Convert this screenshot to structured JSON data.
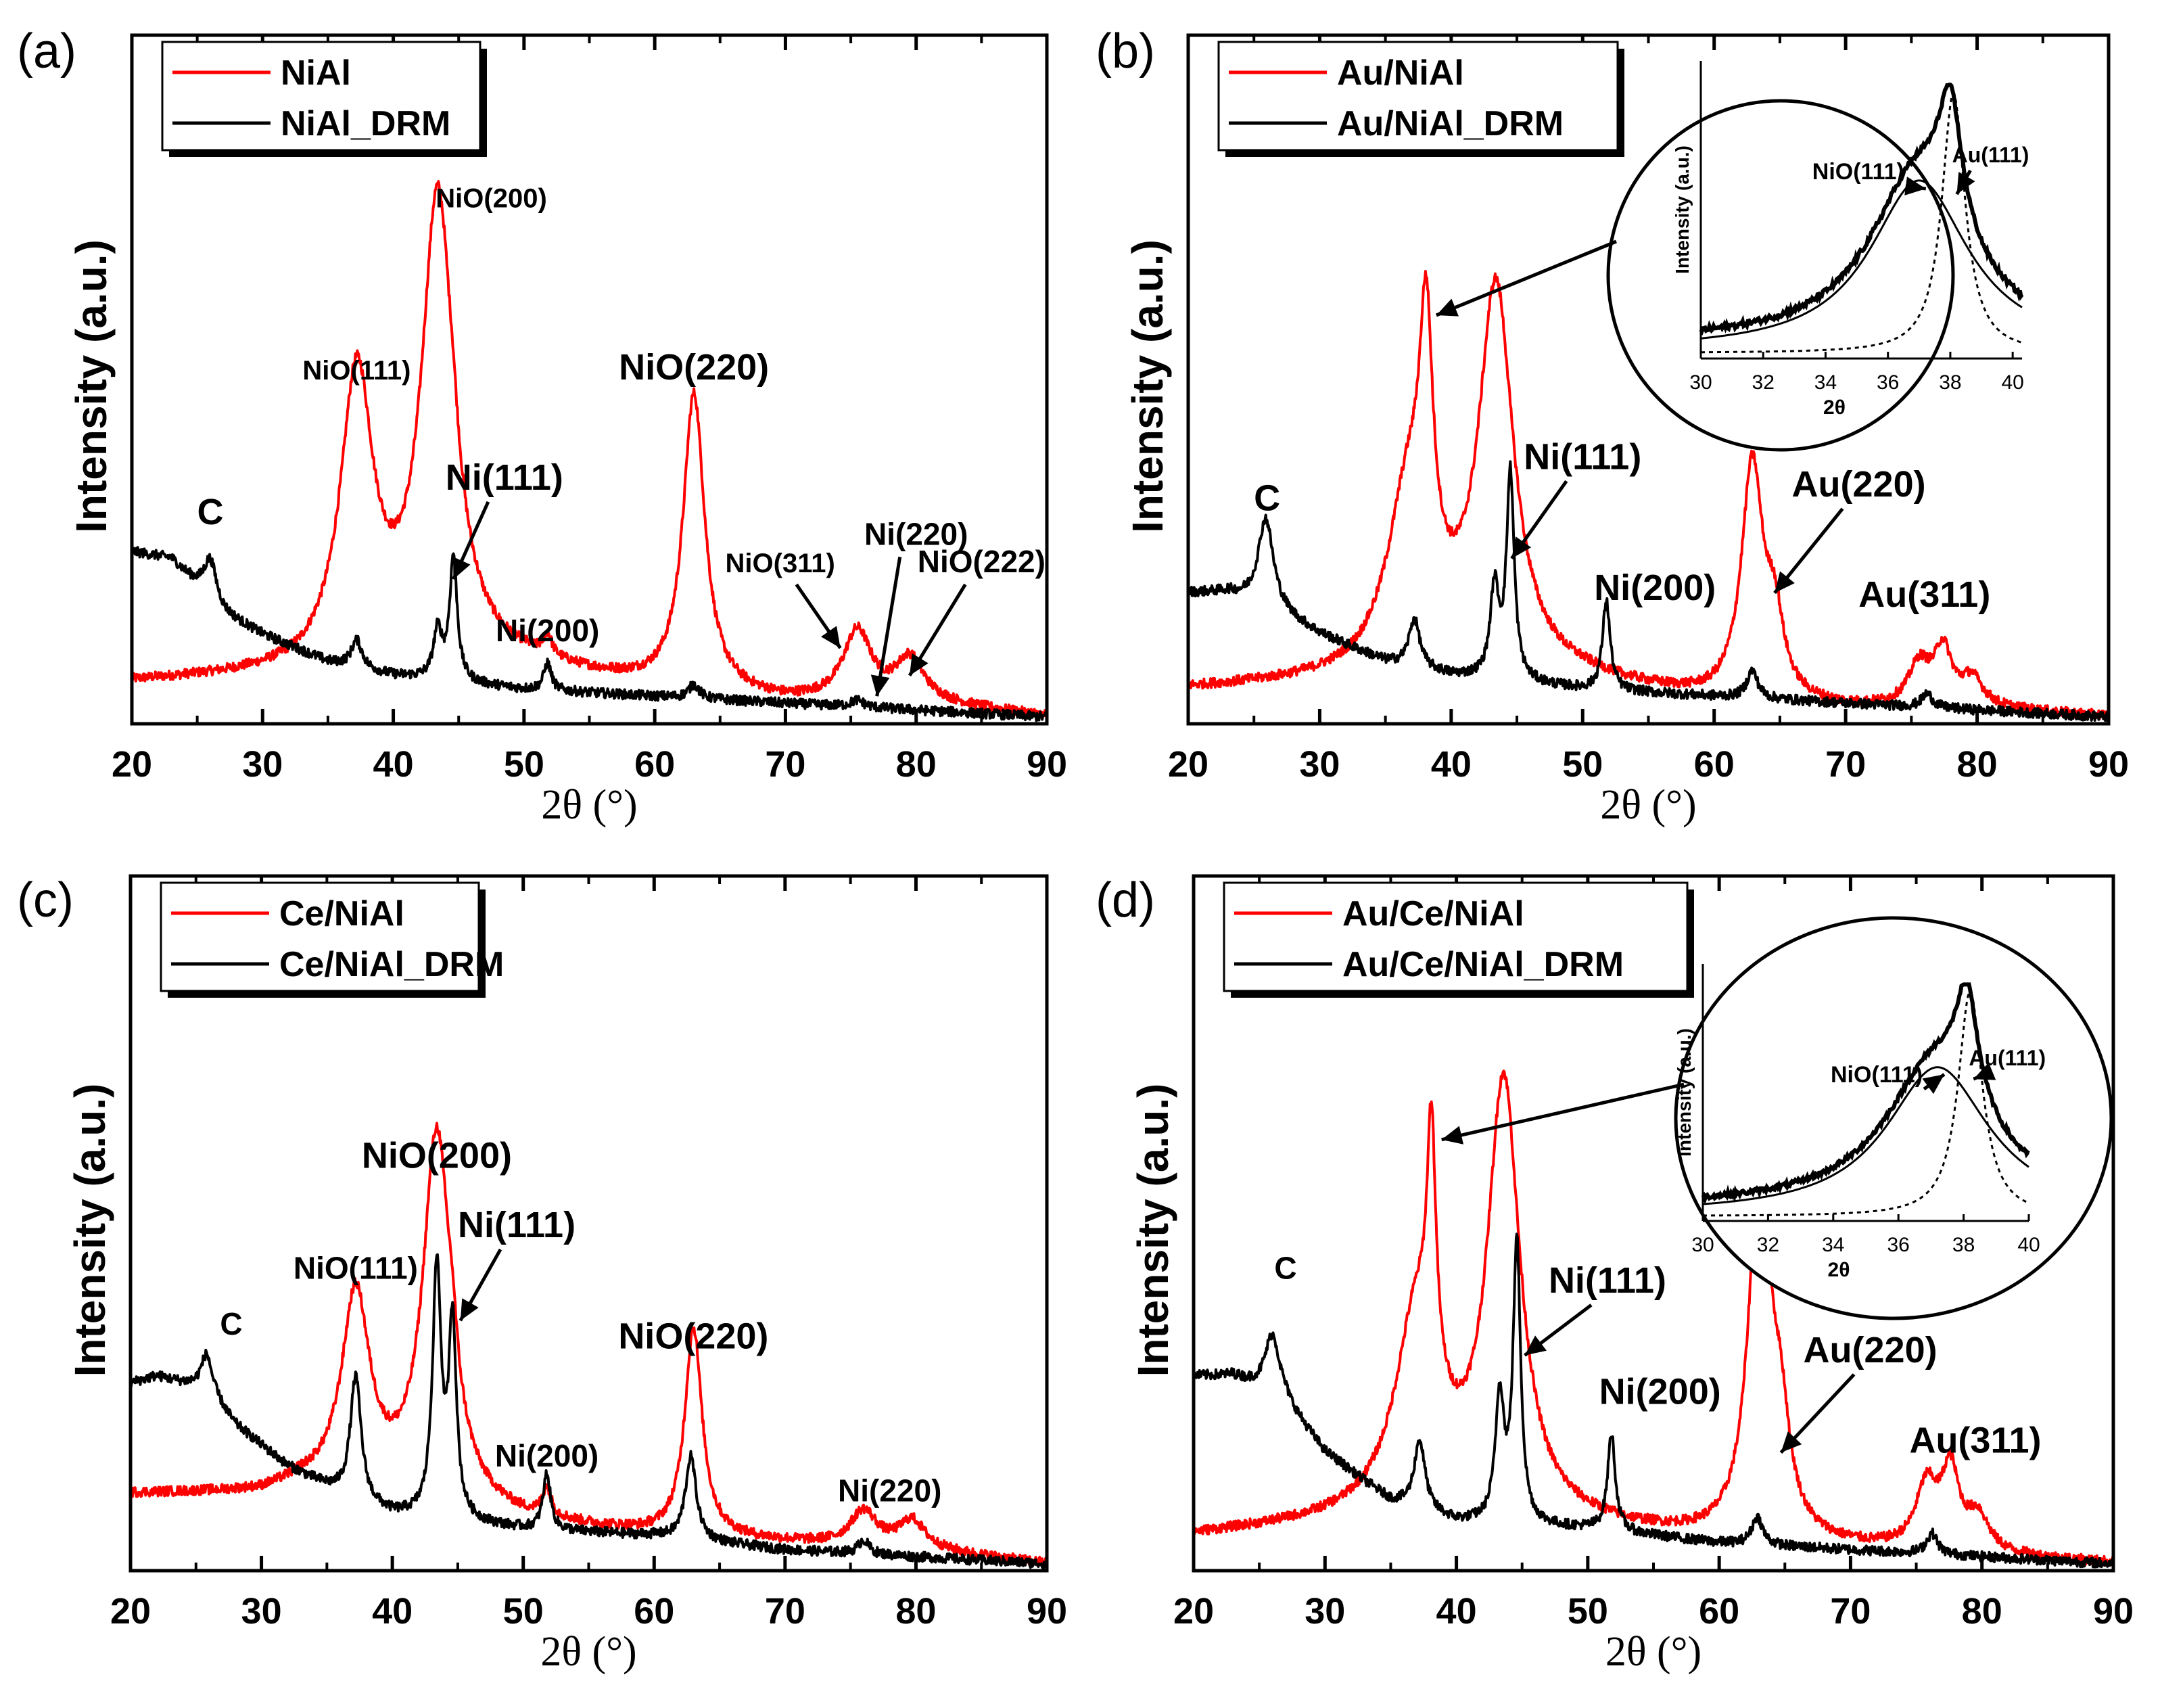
{
  "figure_description": "X-ray diffraction patterns, 2x2 panels",
  "chart_data": [
    {
      "type": "line",
      "panel_letter": "(a)",
      "xlabel": "2θ (°)",
      "ylabel": "Intensity (a.u.)",
      "xlim": [
        20,
        90
      ],
      "ylim": [
        0,
        100
      ],
      "xticks": [
        20,
        30,
        40,
        50,
        60,
        70,
        80,
        90
      ],
      "legend_position": "top-left",
      "series": [
        {
          "name": "NiAl",
          "color": "#ff0000",
          "baseline": [
            [
              20,
              6
            ],
            [
              33,
              7
            ],
            [
              38,
              9
            ],
            [
              50,
              8
            ],
            [
              60,
              5
            ],
            [
              70,
              3
            ],
            [
              80,
              3
            ],
            [
              90,
              1
            ]
          ],
          "peaks": [
            [
              37.2,
              41,
              1.5
            ],
            [
              43.4,
              67,
              1.5
            ],
            [
              44.6,
              3,
              0.4
            ],
            [
              51.8,
              3,
              0.4
            ],
            [
              63.0,
              43,
              1.0
            ],
            [
              75.5,
              10,
              1.3
            ],
            [
              79.5,
              6,
              1.3
            ]
          ]
        },
        {
          "name": "NiAl_DRM",
          "color": "#000000",
          "baseline": [
            [
              20,
              25
            ],
            [
              23,
              24
            ],
            [
              27,
              16
            ],
            [
              30,
              13
            ],
            [
              35,
              9
            ],
            [
              40,
              7
            ],
            [
              50,
              5
            ],
            [
              60,
              4
            ],
            [
              70,
              3
            ],
            [
              80,
              2
            ],
            [
              90,
              1
            ]
          ],
          "peaks": [
            [
              26.0,
              6,
              0.6
            ],
            [
              37.2,
              4,
              0.5
            ],
            [
              43.4,
              7,
              0.4
            ],
            [
              44.6,
              18,
              0.35
            ],
            [
              51.8,
              4,
              0.35
            ],
            [
              63.0,
              2,
              0.5
            ],
            [
              75.5,
              1,
              0.6
            ]
          ]
        }
      ],
      "annotations": [
        {
          "text": "C",
          "x": 26.0,
          "y": 29,
          "size": "lg"
        },
        {
          "text": "NiO(111)",
          "x": 37.2,
          "y": 50,
          "size": "sm"
        },
        {
          "text": "NiO(200)",
          "x": 47.5,
          "y": 75,
          "size": "sm"
        },
        {
          "text": "Ni(111)",
          "x": 48.5,
          "y": 34,
          "size": "lg",
          "arrow_to": [
            44.6,
            21
          ]
        },
        {
          "text": "NiO(220)",
          "x": 63.0,
          "y": 50,
          "size": "lg"
        },
        {
          "text": "Ni(200)",
          "x": 51.8,
          "y": 12,
          "size": "md"
        },
        {
          "text": "NiO(311)",
          "x": 69.6,
          "y": 22,
          "size": "sm",
          "arrow_to": [
            74.2,
            11
          ]
        },
        {
          "text": "Ni(220)",
          "x": 80.0,
          "y": 26,
          "size": "md",
          "arrow_to": [
            77.0,
            4
          ]
        },
        {
          "text": "NiO(222)",
          "x": 85.0,
          "y": 22,
          "size": "md",
          "arrow_to": [
            79.5,
            7
          ]
        }
      ]
    },
    {
      "type": "line",
      "panel_letter": "(b)",
      "xlabel": "2θ (°)",
      "ylabel": "Intensity (a.u.)",
      "xlim": [
        20,
        90
      ],
      "ylim": [
        0,
        100
      ],
      "xticks": [
        20,
        30,
        40,
        50,
        60,
        70,
        80,
        90
      ],
      "legend_position": "top-left",
      "series": [
        {
          "name": "Au/NiAl",
          "color": "#ff0000",
          "baseline": [
            [
              20,
              5
            ],
            [
              33,
              6
            ],
            [
              38,
              8
            ],
            [
              50,
              6
            ],
            [
              60,
              3
            ],
            [
              70,
              2
            ],
            [
              80,
              2
            ],
            [
              90,
              1
            ]
          ],
          "peaks": [
            [
              36.8,
              25,
              2.0
            ],
            [
              38.1,
              35,
              0.6
            ],
            [
              43.4,
              55,
              1.6
            ],
            [
              62.9,
              34,
              1.0
            ],
            [
              64.6,
              10,
              0.8
            ],
            [
              75.6,
              6,
              1.0
            ],
            [
              77.4,
              8,
              0.8
            ],
            [
              79.6,
              4,
              1.0
            ]
          ]
        },
        {
          "name": "Au/NiAl_DRM",
          "color": "#000000",
          "baseline": [
            [
              20,
              19
            ],
            [
              23,
              19
            ],
            [
              27,
              16
            ],
            [
              30,
              13
            ],
            [
              35,
              9
            ],
            [
              40,
              7
            ],
            [
              50,
              5
            ],
            [
              60,
              4
            ],
            [
              70,
              3
            ],
            [
              80,
              2
            ],
            [
              90,
              1
            ]
          ],
          "peaks": [
            [
              25.9,
              13,
              0.7
            ],
            [
              37.2,
              7,
              0.5
            ],
            [
              43.3,
              13,
              0.4
            ],
            [
              44.5,
              30,
              0.35
            ],
            [
              51.8,
              13,
              0.35
            ],
            [
              62.9,
              4,
              0.5
            ],
            [
              76.2,
              2,
              0.5
            ]
          ]
        }
      ],
      "annotations": [
        {
          "text": "C",
          "x": 26.0,
          "y": 31,
          "size": "lg"
        },
        {
          "text": "Ni(111)",
          "x": 50.0,
          "y": 37,
          "size": "lg",
          "arrow_to": [
            44.6,
            24
          ]
        },
        {
          "text": "Ni(200)",
          "x": 55.5,
          "y": 18,
          "size": "lg"
        },
        {
          "text": "Au(220)",
          "x": 71.0,
          "y": 33,
          "size": "lg",
          "arrow_to": [
            64.6,
            19
          ]
        },
        {
          "text": "Au(311)",
          "x": 76.0,
          "y": 17,
          "size": "lg"
        }
      ],
      "inset": {
        "xlim": [
          30,
          40.3
        ],
        "xticks": [
          30,
          32,
          34,
          36,
          38,
          40
        ],
        "xlabel": "2θ",
        "ylabel": "Intensity (a.u.)",
        "main_peak": [
          38.0,
          1.0
        ],
        "nio_fit": [
          37.0,
          1.2
        ],
        "au_fit": [
          38.1,
          0.45
        ],
        "labels": [
          "NiO(111)",
          "Au(111)"
        ]
      }
    },
    {
      "type": "line",
      "panel_letter": "(c)",
      "xlabel": "2θ (°)",
      "ylabel": "Intensity (a.u.)",
      "xlim": [
        20,
        90
      ],
      "ylim": [
        0,
        100
      ],
      "xticks": [
        20,
        30,
        40,
        50,
        60,
        70,
        80,
        90
      ],
      "legend_position": "top-left",
      "series": [
        {
          "name": "Ce/NiAl",
          "color": "#ff0000",
          "baseline": [
            [
              20,
              11
            ],
            [
              30,
              11
            ],
            [
              33,
              12
            ],
            [
              38,
              11
            ],
            [
              50,
              7
            ],
            [
              60,
              5
            ],
            [
              70,
              4
            ],
            [
              80,
              3
            ],
            [
              90,
              1
            ]
          ],
          "peaks": [
            [
              37.2,
              28,
              1.3
            ],
            [
              43.4,
              53,
              1.3
            ],
            [
              44.6,
              5,
              0.4
            ],
            [
              51.8,
              4,
              0.4
            ],
            [
              63.0,
              30,
              0.8
            ],
            [
              76.0,
              5,
              1.2
            ],
            [
              79.7,
              4,
              1.2
            ]
          ]
        },
        {
          "name": "Ce/NiAl_DRM",
          "color": "#000000",
          "baseline": [
            [
              20,
              27
            ],
            [
              22,
              28
            ],
            [
              26,
              26
            ],
            [
              28,
              21
            ],
            [
              32,
              15
            ],
            [
              37,
              10
            ],
            [
              40,
              8
            ],
            [
              50,
              6
            ],
            [
              60,
              5
            ],
            [
              70,
              3
            ],
            [
              80,
              2
            ],
            [
              90,
              1
            ]
          ],
          "peaks": [
            [
              25.8,
              5,
              0.5
            ],
            [
              37.2,
              18,
              0.5
            ],
            [
              43.4,
              36,
              0.4
            ],
            [
              44.6,
              28,
              0.35
            ],
            [
              51.8,
              8,
              0.35
            ],
            [
              62.8,
              12,
              0.5
            ],
            [
              76.0,
              2,
              0.5
            ]
          ]
        }
      ],
      "annotations": [
        {
          "text": "C",
          "x": 27.7,
          "y": 34,
          "size": "md"
        },
        {
          "text": "NiO(111)",
          "x": 37.2,
          "y": 42,
          "size": "md"
        },
        {
          "text": "NiO(200)",
          "x": 43.4,
          "y": 58,
          "size": "lg"
        },
        {
          "text": "Ni(111)",
          "x": 49.5,
          "y": 48,
          "size": "lg",
          "arrow_to": [
            45.2,
            36
          ]
        },
        {
          "text": "Ni(200)",
          "x": 51.8,
          "y": 15,
          "size": "md"
        },
        {
          "text": "NiO(220)",
          "x": 63.0,
          "y": 32,
          "size": "lg"
        },
        {
          "text": "Ni(220)",
          "x": 78.0,
          "y": 10,
          "size": "md"
        }
      ]
    },
    {
      "type": "line",
      "panel_letter": "(d)",
      "xlabel": "2θ (°)",
      "ylabel": "Intensity (a.u.)",
      "xlim": [
        20,
        90
      ],
      "ylim": [
        0,
        100
      ],
      "xticks": [
        20,
        30,
        40,
        50,
        60,
        70,
        80,
        90
      ],
      "legend_position": "top-left",
      "series": [
        {
          "name": "Au/Ce/NiAl",
          "color": "#ff0000",
          "baseline": [
            [
              20,
              5
            ],
            [
              33,
              7
            ],
            [
              38,
              8
            ],
            [
              50,
              6
            ],
            [
              60,
              4
            ],
            [
              70,
              3
            ],
            [
              80,
              2
            ],
            [
              90,
              1
            ]
          ],
          "peaks": [
            [
              37.0,
              28,
              2.0
            ],
            [
              38.1,
              34,
              0.4
            ],
            [
              43.6,
              62,
              1.5
            ],
            [
              63.1,
              55,
              1.0
            ],
            [
              64.7,
              12,
              0.8
            ],
            [
              75.8,
              9,
              1.0
            ],
            [
              77.6,
              11,
              0.8
            ],
            [
              79.7,
              5,
              1.0
            ]
          ]
        },
        {
          "name": "Au/Ce/NiAl_DRM",
          "color": "#000000",
          "baseline": [
            [
              20,
              28
            ],
            [
              23,
              28
            ],
            [
              27,
              24
            ],
            [
              30,
              17
            ],
            [
              35,
              10
            ],
            [
              40,
              7
            ],
            [
              50,
              6
            ],
            [
              60,
              4
            ],
            [
              70,
              3
            ],
            [
              80,
              2
            ],
            [
              90,
              1
            ]
          ],
          "peaks": [
            [
              26.0,
              9,
              0.7
            ],
            [
              37.2,
              10,
              0.5
            ],
            [
              43.3,
              18,
              0.4
            ],
            [
              44.6,
              40,
              0.35
            ],
            [
              51.8,
              14,
              0.35
            ],
            [
              62.9,
              4,
              0.5
            ],
            [
              76.2,
              3,
              0.5
            ]
          ]
        }
      ],
      "annotations": [
        {
          "text": "C",
          "x": 27.0,
          "y": 42,
          "size": "md"
        },
        {
          "text": "Ni(111)",
          "x": 51.5,
          "y": 40,
          "size": "lg",
          "arrow_to": [
            45.2,
            31
          ]
        },
        {
          "text": "Ni(200)",
          "x": 55.5,
          "y": 24,
          "size": "lg"
        },
        {
          "text": "Au(220)",
          "x": 71.5,
          "y": 30,
          "size": "lg",
          "arrow_to": [
            64.7,
            17
          ]
        },
        {
          "text": "Au(311)",
          "x": 79.5,
          "y": 17,
          "size": "lg"
        }
      ],
      "inset": {
        "xlim": [
          30,
          40
        ],
        "xticks": [
          30,
          32,
          34,
          36,
          38,
          40
        ],
        "xlabel": "2θ",
        "ylabel": "Intensity (a.u.)",
        "main_peak": [
          38.1,
          0.9
        ],
        "nio_fit": [
          37.2,
          1.2
        ],
        "au_fit": [
          38.2,
          0.45
        ],
        "labels": [
          "NiO(111)",
          "Au(111)"
        ]
      }
    }
  ]
}
